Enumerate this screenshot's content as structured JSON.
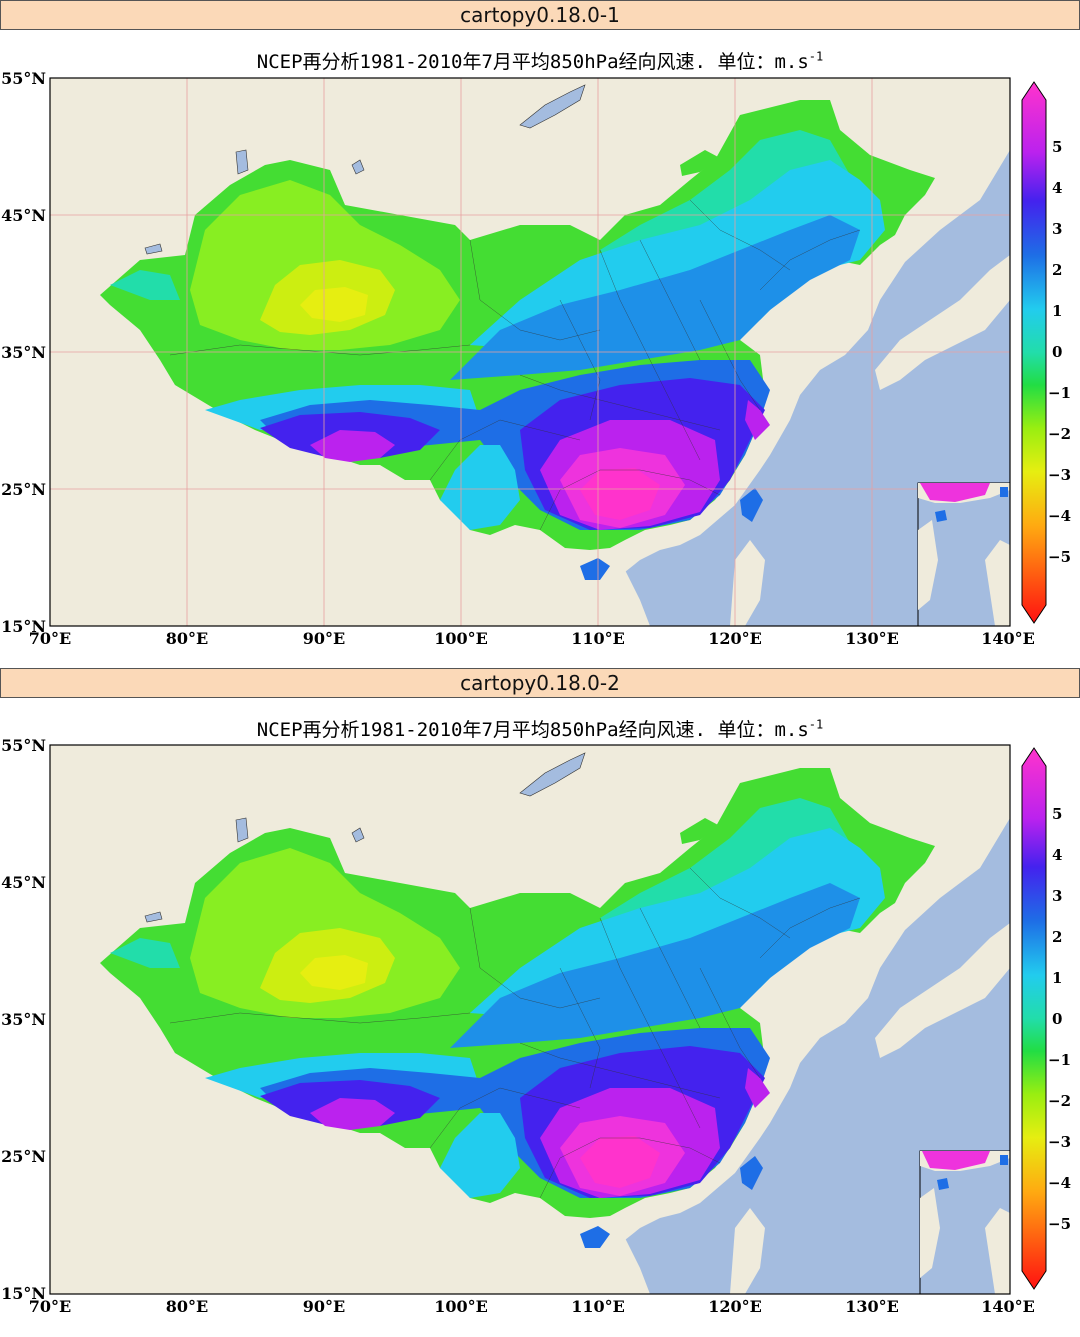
{
  "colors": {
    "land": "#efebdc",
    "ocean": "#a4bcdf",
    "gridline": "#e8a0a0",
    "header_bg": "#fbd9b8"
  },
  "panels": [
    {
      "header": "cartopy0.18.0-1",
      "title_main": "NCEP再分析1981-2010年7月平均850hPa经向风速. 单位：m.s",
      "title_exp": "-1",
      "gridlines": true,
      "lat_labels": [
        "55°N",
        "45°N",
        "35°N",
        "25°N",
        "15°N"
      ],
      "lon_labels": [
        "70°E",
        "80°E",
        "90°E",
        "100°E",
        "110°E",
        "120°E",
        "130°E",
        "140°E"
      ],
      "colorbar_ticks": [
        "5",
        "4",
        "3",
        "2",
        "1",
        "0",
        "−1",
        "−2",
        "−3",
        "−4",
        "−5"
      ]
    },
    {
      "header": "cartopy0.18.0-2",
      "title_main": "NCEP再分析1981-2010年7月平均850hPa经向风速. 单位：m.s",
      "title_exp": "-1",
      "gridlines": false,
      "lat_labels": [
        "55°N",
        "45°N",
        "35°N",
        "25°N",
        "15°N"
      ],
      "lon_labels": [
        "70°E",
        "80°E",
        "90°E",
        "100°E",
        "110°E",
        "120°E",
        "130°E",
        "140°E"
      ],
      "colorbar_ticks": [
        "5",
        "4",
        "3",
        "2",
        "1",
        "0",
        "−1",
        "−2",
        "−3",
        "−4",
        "−5"
      ]
    }
  ]
}
